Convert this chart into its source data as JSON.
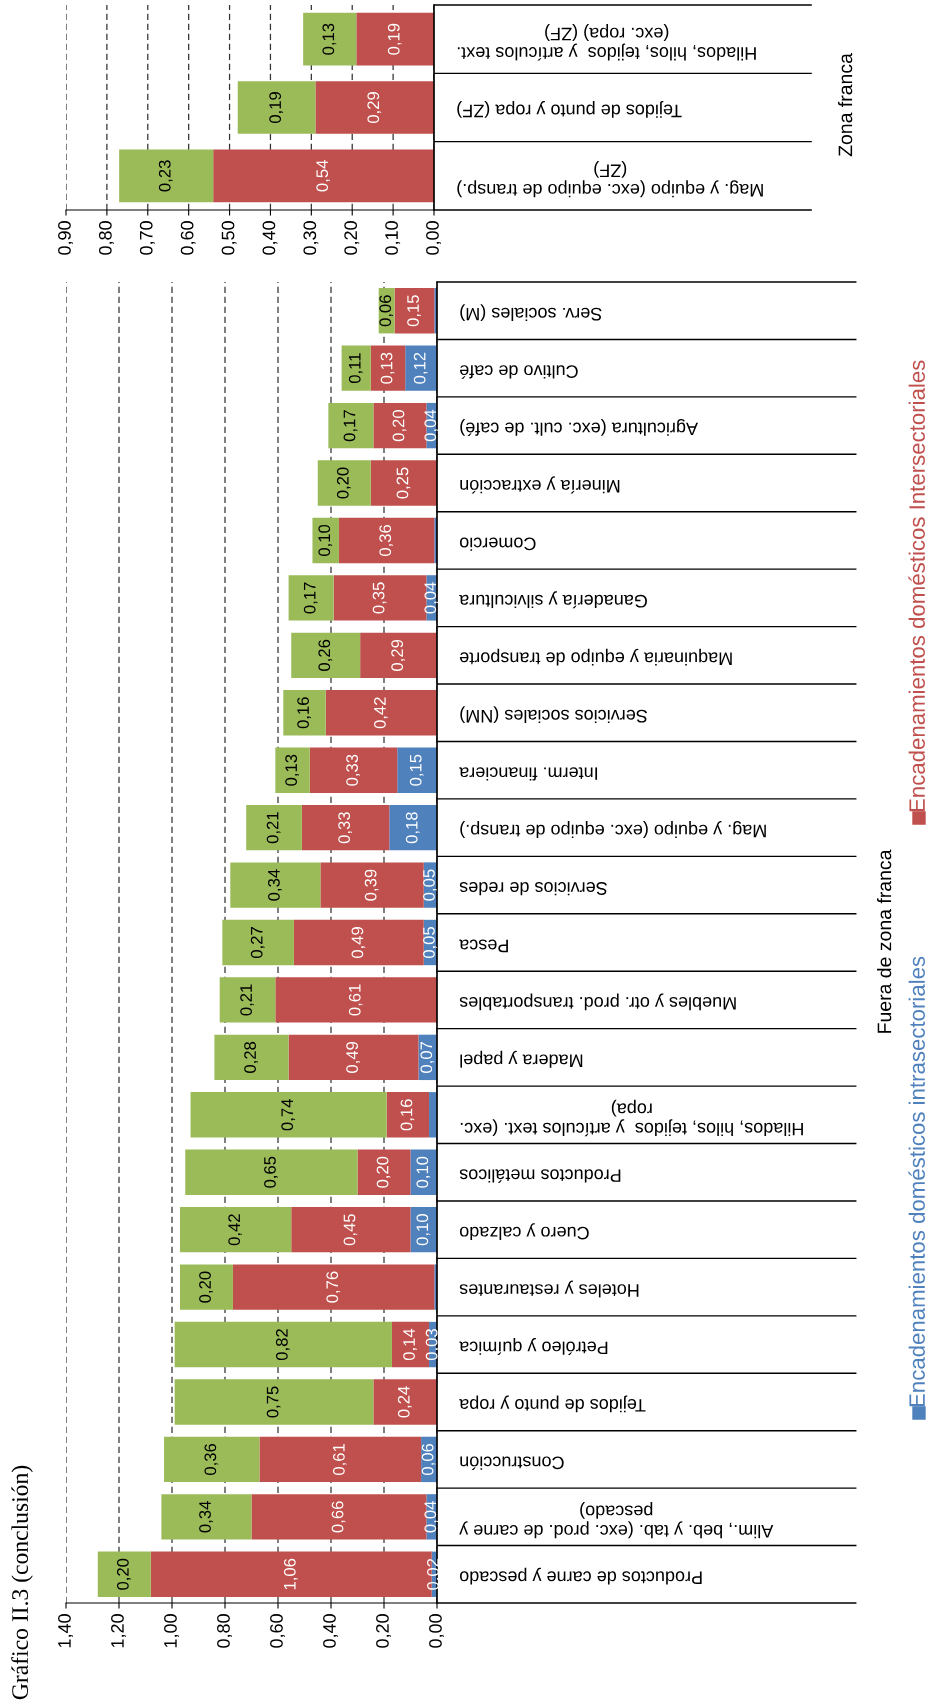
{
  "chart_data": [
    {
      "type": "bar",
      "orientation": "horizontal",
      "stacked": true,
      "title": "Gráfico II.3 (conclusión)",
      "ylabel": "Fuera de zona franca",
      "categories": [
        "Serv. sociales (M)",
        "Cultivo de café",
        "Agricultura (exc. cult. de café)",
        "Minería y extracción",
        "Comercio",
        "Ganadería y silvicultura",
        "Maquinaria y equipo de transporte",
        "Servicios sociales (NM)",
        "Interm. financiera",
        "Mag. y equipo (exc. equipo de transp.)",
        "Servicios de redes",
        "Pesca",
        "Muebles y otr. prod. transportables",
        "Madera y papel",
        "Hilados, hilos, tejidos  y artículos text. (exc.\nropa)",
        "Productos metálicos",
        "Cuero y calzado",
        "Hoteles y restaurantes",
        "Petróleo y química",
        "Tejidos de punto y ropa",
        "Construcción",
        "Alim., beb. y tab. (exc. prod. de carne y\npescado)",
        "Productos de carne y pescado"
      ],
      "series": [
        {
          "name": "Encadenamientos domésticos intrasectoriales",
          "color": "#4f81bd",
          "values": [
            0.01,
            0.12,
            0.04,
            null,
            0.01,
            0.04,
            null,
            null,
            0.15,
            0.18,
            0.05,
            0.05,
            null,
            0.07,
            0.03,
            0.1,
            0.1,
            0.01,
            0.03,
            null,
            0.06,
            0.04,
            0.02
          ],
          "value_labels": [
            null,
            "0,12",
            "0,04",
            null,
            null,
            "0,04",
            null,
            null,
            "0,15",
            "0,18",
            "0,05",
            "0,05",
            null,
            "0,07",
            null,
            "0,10",
            "0,10",
            null,
            "0,03",
            null,
            "0,06",
            "0,04",
            "0,02"
          ]
        },
        {
          "name": "Encadenamientos domésticos Intersectoriales",
          "color": "#c0504d",
          "values": [
            0.15,
            0.13,
            0.2,
            0.25,
            0.36,
            0.35,
            0.29,
            0.42,
            0.33,
            0.33,
            0.39,
            0.49,
            0.61,
            0.49,
            0.16,
            0.2,
            0.45,
            0.76,
            0.14,
            0.24,
            0.61,
            0.66,
            1.06
          ],
          "value_labels": [
            "0,15",
            "0,13",
            "0,20",
            "0,25",
            "0,36",
            "0,35",
            "0,29",
            "0,42",
            "0,33",
            "0,33",
            "0,39",
            "0,49",
            "0,61",
            "0,49",
            "0,16",
            "0,20",
            "0,45",
            "0,76",
            "0,14",
            "0,24",
            "0,61",
            "0,66",
            "1,06"
          ]
        },
        {
          "color": "#9bbb59",
          "values": [
            0.06,
            0.11,
            0.17,
            0.2,
            0.1,
            0.17,
            0.26,
            0.16,
            0.13,
            0.21,
            0.34,
            0.27,
            0.21,
            0.28,
            0.74,
            0.65,
            0.42,
            0.2,
            0.82,
            0.75,
            0.36,
            0.34,
            0.2
          ],
          "value_labels": [
            "0,06",
            "0,11",
            "0,17",
            "0,20",
            "0,10",
            "0,17",
            "0,26",
            "0,16",
            "0,13",
            "0,21",
            "0,34",
            "0,27",
            "0,21",
            "0,28",
            "0,74",
            "0,65",
            "0,42",
            "0,20",
            "0,82",
            "0,75",
            "0,36",
            "0,34",
            "0,20"
          ]
        }
      ],
      "xlim": [
        1.4,
        0
      ],
      "xticks": [
        {
          "value": 1.4,
          "label": "1,40"
        },
        {
          "value": 1.2,
          "label": "1,20"
        },
        {
          "value": 1.0,
          "label": "1,00"
        },
        {
          "value": 0.8,
          "label": "0,80"
        },
        {
          "value": 0.6,
          "label": "0,60"
        },
        {
          "value": 0.4,
          "label": "0,40"
        },
        {
          "value": 0.2,
          "label": "0,20"
        },
        {
          "value": 0,
          "label": "0,00"
        }
      ],
      "grid": "x",
      "legend": "right"
    },
    {
      "type": "bar",
      "orientation": "horizontal",
      "stacked": true,
      "ylabel": "Zona franca",
      "categories": [
        "Hilados, hilos, tejidos  y artículos text.\n(exc. ropa) (ZF)",
        "Tejidos de punto y ropa (ZF)",
        "Mag. y equipo (exc. equipo de transp.)\n(ZF)"
      ],
      "series": [
        {
          "color": "#c0504d",
          "values": [
            0.19,
            0.29,
            0.54
          ],
          "value_labels": [
            "0,19",
            "0,29",
            "0,54"
          ]
        },
        {
          "color": "#9bbb59",
          "values": [
            0.13,
            0.19,
            0.23
          ],
          "value_labels": [
            "0,13",
            "0,19",
            "0,23"
          ]
        }
      ],
      "xlim": [
        0.9,
        0
      ],
      "xticks": [
        {
          "value": 0.9,
          "label": "0,90"
        },
        {
          "value": 0.8,
          "label": "0,80"
        },
        {
          "value": 0.7,
          "label": "0,70"
        },
        {
          "value": 0.6,
          "label": "0,60"
        },
        {
          "value": 0.5,
          "label": "0,50"
        },
        {
          "value": 0.4,
          "label": "0,40"
        },
        {
          "value": 0.3,
          "label": "0,30"
        },
        {
          "value": 0.2,
          "label": "0,20"
        },
        {
          "value": 0.1,
          "label": "0,10"
        },
        {
          "value": 0,
          "label": "0,00"
        }
      ],
      "grid": "x"
    }
  ]
}
